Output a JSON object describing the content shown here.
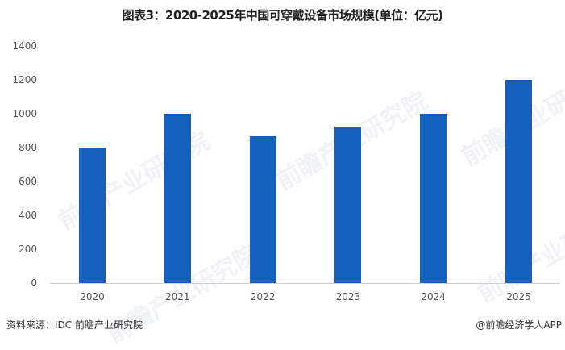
{
  "title": "图表3：2020-2025年中国可穿戴设备市场规模(单位：亿元)",
  "source": "资料来源：IDC 前瞻产业研究院",
  "credit": "@前瞻经济学人APP",
  "watermark": "前瞻产业研究院",
  "colors": {
    "bar": "#1560BD",
    "axis": "#d0d0d0",
    "text": "#555555"
  },
  "chart_data": {
    "type": "bar",
    "title": "图表3：2020-2025年中国可穿戴设备市场规模(单位：亿元)",
    "xlabel": "",
    "ylabel": "",
    "categories": [
      "2020",
      "2021",
      "2022",
      "2023",
      "2024",
      "2025"
    ],
    "values": [
      800,
      1000,
      865,
      925,
      1000,
      1200
    ],
    "ylim": [
      0,
      1400
    ],
    "yticks": [
      "0",
      "200",
      "400",
      "600",
      "800",
      "1000",
      "1200",
      "1400"
    ],
    "grid": false,
    "legend": null
  }
}
